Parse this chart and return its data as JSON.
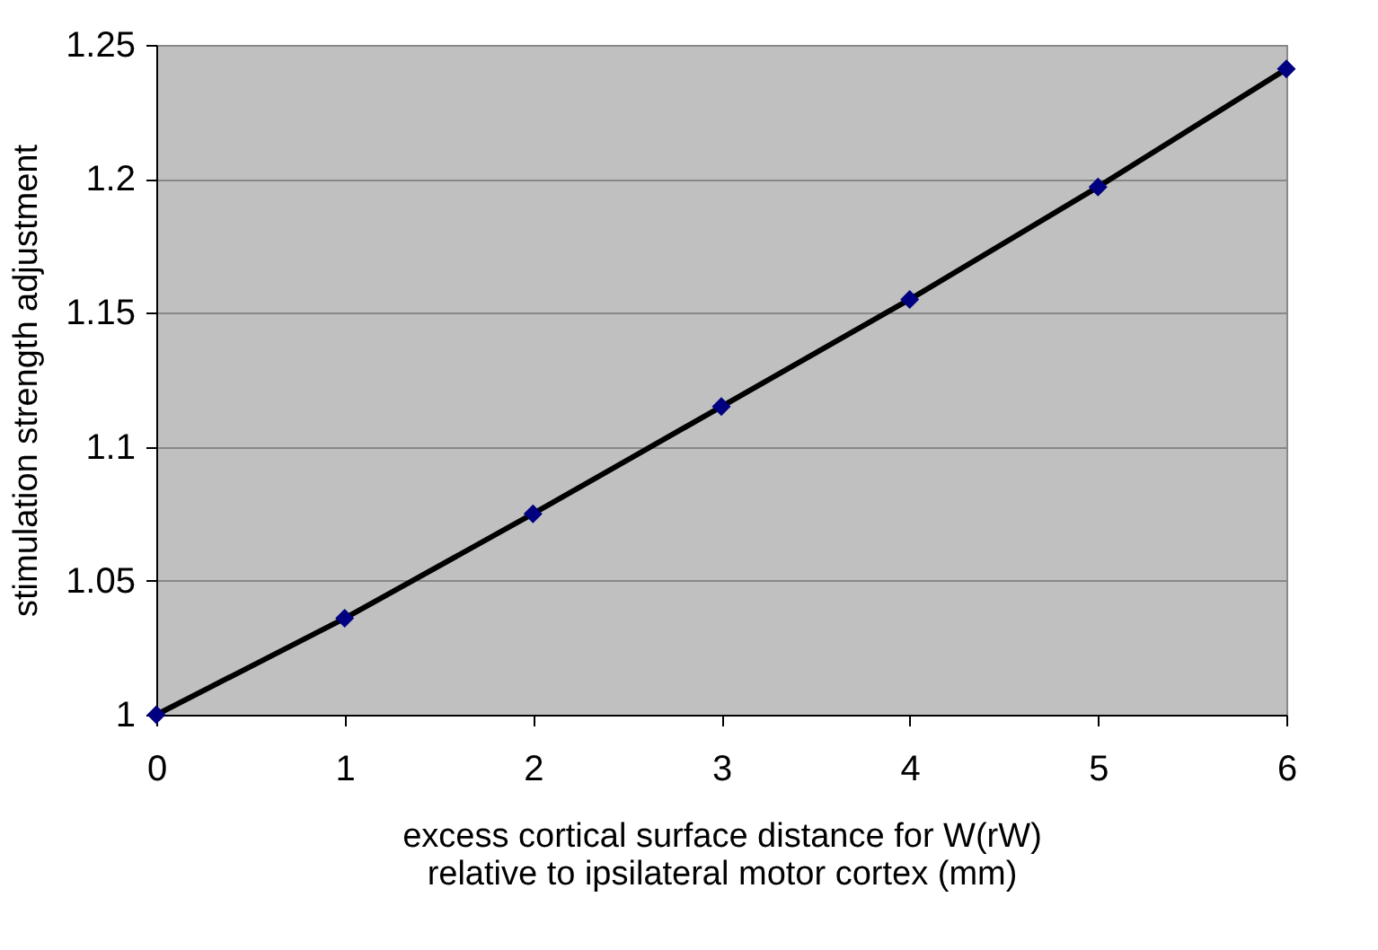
{
  "chart_data": {
    "type": "line",
    "xlabel": "excess cortical surface distance for W(rW)\nrelative to ipsilateral motor cortex (mm)",
    "ylabel": "stimulation strength adjustment",
    "x": [
      0,
      1,
      2,
      3,
      4,
      5,
      6
    ],
    "series": [
      {
        "color": "#000000",
        "marker": "none",
        "values": [
          1,
          1.036,
          1.075,
          1.115,
          1.155,
          1.197,
          1.241
        ]
      },
      {
        "type": "scatter",
        "color": "#000080",
        "marker": "diamond",
        "values": [
          1,
          1.036,
          1.075,
          1.115,
          1.155,
          1.197,
          1.241
        ]
      }
    ],
    "xlim": [
      0,
      6
    ],
    "xticks": [
      0,
      1,
      2,
      3,
      4,
      5,
      6
    ],
    "ylim": [
      1,
      1.25
    ],
    "yticks": [
      1,
      1.05,
      1.1,
      1.15,
      1.2,
      1.25
    ],
    "grid": "y"
  }
}
